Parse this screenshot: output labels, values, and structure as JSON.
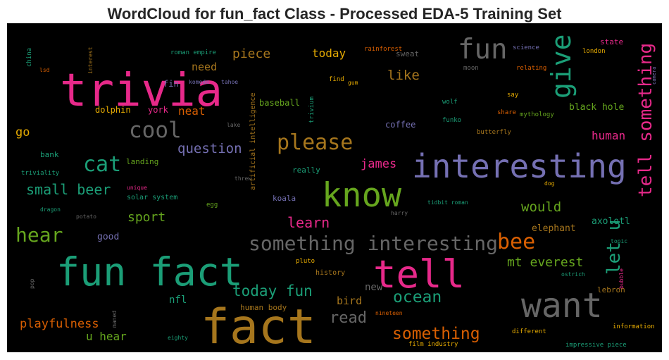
{
  "chart_data": {
    "type": "wordcloud",
    "title": "WordCloud for fun_fact Class - Processed EDA-5 Training Set",
    "background": "#000000",
    "words": [
      {
        "text": "trivia",
        "color": "#e7298a"
      },
      {
        "text": "fact",
        "color": "#a6761d"
      },
      {
        "text": "fun fact",
        "color": "#1b9e77"
      },
      {
        "text": "tell",
        "color": "#e7298a"
      },
      {
        "text": "interesting",
        "color": "#7570b3"
      },
      {
        "text": "know",
        "color": "#66a61e"
      },
      {
        "text": "want",
        "color": "#666666"
      },
      {
        "text": "fun",
        "color": "#666666"
      },
      {
        "text": "give",
        "color": "#1b9e77"
      },
      {
        "text": "tell something",
        "color": "#e7298a"
      },
      {
        "text": "cool",
        "color": "#666666"
      },
      {
        "text": "please",
        "color": "#a6761d"
      },
      {
        "text": "cat",
        "color": "#1b9e77"
      },
      {
        "text": "something interesting",
        "color": "#666666"
      },
      {
        "text": "bee",
        "color": "#d95f02"
      },
      {
        "text": "let u",
        "color": "#1b9e77"
      },
      {
        "text": "hear",
        "color": "#66a61e"
      },
      {
        "text": "small beer",
        "color": "#1b9e77"
      },
      {
        "text": "question",
        "color": "#7570b3"
      },
      {
        "text": "learn",
        "color": "#e7298a"
      },
      {
        "text": "james",
        "color": "#e7298a"
      },
      {
        "text": "would",
        "color": "#66a61e"
      },
      {
        "text": "sport",
        "color": "#66a61e"
      },
      {
        "text": "like",
        "color": "#a6761d"
      },
      {
        "text": "piece",
        "color": "#a6761d"
      },
      {
        "text": "today",
        "color": "#e6ab02"
      },
      {
        "text": "need",
        "color": "#a6761d"
      },
      {
        "text": "neat",
        "color": "#d95f02"
      },
      {
        "text": "go",
        "color": "#e6ab02"
      },
      {
        "text": "human",
        "color": "#e7298a"
      },
      {
        "text": "black hole",
        "color": "#66a61e"
      },
      {
        "text": "mt everest",
        "color": "#66a61e"
      },
      {
        "text": "today fun",
        "color": "#1b9e77"
      },
      {
        "text": "ocean",
        "color": "#1b9e77"
      },
      {
        "text": "read",
        "color": "#666666"
      },
      {
        "text": "something",
        "color": "#d95f02"
      },
      {
        "text": "playfulness",
        "color": "#d95f02"
      },
      {
        "text": "u hear",
        "color": "#66a61e"
      },
      {
        "text": "bird",
        "color": "#a6761d"
      },
      {
        "text": "new",
        "color": "#666666"
      },
      {
        "text": "nfl",
        "color": "#1b9e77"
      },
      {
        "text": "human body",
        "color": "#a6761d"
      },
      {
        "text": "history",
        "color": "#a6761d"
      },
      {
        "text": "elephant",
        "color": "#a6761d"
      },
      {
        "text": "axolotl",
        "color": "#1b9e77"
      },
      {
        "text": "good",
        "color": "#7570b3"
      },
      {
        "text": "lebron",
        "color": "#a6761d"
      },
      {
        "text": "coffee",
        "color": "#7570b3"
      },
      {
        "text": "baseball",
        "color": "#66a61e"
      },
      {
        "text": "york",
        "color": "#e7298a"
      },
      {
        "text": "dolphin",
        "color": "#e6ab02"
      },
      {
        "text": "fin",
        "color": "#7570b3"
      },
      {
        "text": "bank",
        "color": "#1b9e77"
      },
      {
        "text": "landing",
        "color": "#66a61e"
      },
      {
        "text": "really",
        "color": "#1b9e77"
      },
      {
        "text": "koala",
        "color": "#7570b3"
      },
      {
        "text": "egg",
        "color": "#66a61e"
      },
      {
        "text": "threw",
        "color": "#666666"
      },
      {
        "text": "solar system",
        "color": "#1b9e77"
      },
      {
        "text": "unique",
        "color": "#e7298a"
      },
      {
        "text": "dragon",
        "color": "#1b9e77"
      },
      {
        "text": "potato",
        "color": "#666666"
      },
      {
        "text": "harry",
        "color": "#666666"
      },
      {
        "text": "tidbit roman",
        "color": "#1b9e77"
      },
      {
        "text": "dog",
        "color": "#e6ab02"
      },
      {
        "text": "sweat",
        "color": "#666666"
      },
      {
        "text": "rainforest",
        "color": "#d95f02"
      },
      {
        "text": "state",
        "color": "#e7298a"
      },
      {
        "text": "science",
        "color": "#7570b3"
      },
      {
        "text": "london",
        "color": "#e6ab02"
      },
      {
        "text": "moon",
        "color": "#666666"
      },
      {
        "text": "relating",
        "color": "#d95f02"
      },
      {
        "text": "find",
        "color": "#e6ab02"
      },
      {
        "text": "gum",
        "color": "#e6ab02"
      },
      {
        "text": "say",
        "color": "#e6ab02"
      },
      {
        "text": "share",
        "color": "#d95f02"
      },
      {
        "text": "mythology",
        "color": "#66a61e"
      },
      {
        "text": "funko",
        "color": "#1b9e77"
      },
      {
        "text": "wolf",
        "color": "#1b9e77"
      },
      {
        "text": "butterfly",
        "color": "#a6761d"
      },
      {
        "text": "lake",
        "color": "#666666"
      },
      {
        "text": "artificial intelligence",
        "color": "#a6761d"
      },
      {
        "text": "trivium",
        "color": "#1b9e77"
      },
      {
        "text": "interest",
        "color": "#a6761d"
      },
      {
        "text": "china",
        "color": "#1b9e77"
      },
      {
        "text": "lsd",
        "color": "#d95f02"
      },
      {
        "text": "roman empire",
        "color": "#1b9e77"
      },
      {
        "text": "komodo",
        "color": "#7570b3"
      },
      {
        "text": "tahoe",
        "color": "#7570b3"
      },
      {
        "text": "triviality",
        "color": "#1b9e77"
      },
      {
        "text": "pluto",
        "color": "#e6ab02"
      },
      {
        "text": "ostrich",
        "color": "#1b9e77"
      },
      {
        "text": "topic",
        "color": "#1b9e77"
      },
      {
        "text": "bubble",
        "color": "#e7298a"
      },
      {
        "text": "information",
        "color": "#e6ab02"
      },
      {
        "text": "camera",
        "color": "#7570b3"
      },
      {
        "text": "different",
        "color": "#e6ab02"
      },
      {
        "text": "impressive piece",
        "color": "#1b9e77"
      },
      {
        "text": "film industry",
        "color": "#e6ab02"
      },
      {
        "text": "nineteen",
        "color": "#d95f02"
      },
      {
        "text": "eighty",
        "color": "#1b9e77"
      },
      {
        "text": "maned",
        "color": "#666666"
      },
      {
        "text": "pop",
        "color": "#666666"
      }
    ]
  }
}
